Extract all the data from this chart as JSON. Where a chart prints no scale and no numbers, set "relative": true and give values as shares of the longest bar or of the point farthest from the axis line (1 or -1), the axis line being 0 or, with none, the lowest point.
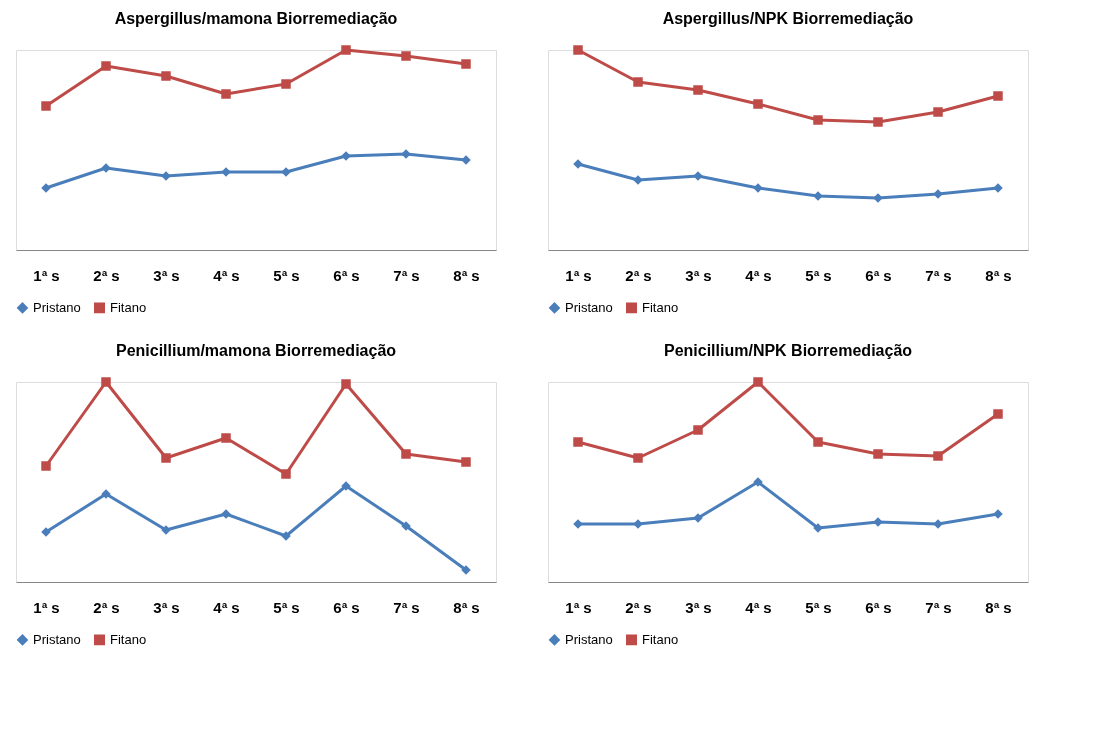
{
  "chart_data": [
    {
      "type": "line",
      "title": "Aspergillus/mamona Biorremediação",
      "relative": true,
      "grid": false,
      "legend": "bottom",
      "categories": [
        "1ª s",
        "2ª s",
        "3ª s",
        "4ª s",
        "5ª s",
        "6ª s",
        "7ª s",
        "8ª s"
      ],
      "series": [
        {
          "name": "Pristano",
          "color": "#4a7ebb",
          "marker": "diamond",
          "values": [
            0.31,
            0.41,
            0.37,
            0.39,
            0.39,
            0.47,
            0.48,
            0.45
          ]
        },
        {
          "name": "Fitano",
          "color": "#be4b48",
          "marker": "square",
          "values": [
            0.72,
            0.92,
            0.87,
            0.78,
            0.83,
            1.0,
            0.97,
            0.93
          ]
        }
      ]
    },
    {
      "type": "line",
      "title": "Aspergillus/NPK Biorremediação",
      "relative": true,
      "grid": false,
      "legend": "bottom",
      "categories": [
        "1ª s",
        "2ª s",
        "3ª s",
        "4ª s",
        "5ª s",
        "6ª s",
        "7ª s",
        "8ª s"
      ],
      "series": [
        {
          "name": "Pristano",
          "color": "#4a7ebb",
          "marker": "diamond",
          "values": [
            0.43,
            0.35,
            0.37,
            0.31,
            0.27,
            0.26,
            0.28,
            0.31
          ]
        },
        {
          "name": "Fitano",
          "color": "#be4b48",
          "marker": "square",
          "values": [
            1.0,
            0.84,
            0.8,
            0.73,
            0.65,
            0.64,
            0.69,
            0.77
          ]
        }
      ]
    },
    {
      "type": "line",
      "title": "Penicillium/mamona Biorremediação",
      "relative": true,
      "grid": false,
      "legend": "bottom",
      "categories": [
        "1ª s",
        "2ª s",
        "3ª s",
        "4ª s",
        "5ª s",
        "6ª s",
        "7ª s",
        "8ª s"
      ],
      "series": [
        {
          "name": "Pristano",
          "color": "#4a7ebb",
          "marker": "diamond",
          "values": [
            0.25,
            0.44,
            0.26,
            0.34,
            0.23,
            0.48,
            0.28,
            0.06
          ]
        },
        {
          "name": "Fitano",
          "color": "#be4b48",
          "marker": "square",
          "values": [
            0.58,
            1.0,
            0.62,
            0.72,
            0.54,
            0.99,
            0.64,
            0.6
          ]
        }
      ]
    },
    {
      "type": "line",
      "title": "Penicillium/NPK Biorremediação",
      "relative": true,
      "grid": false,
      "legend": "bottom",
      "categories": [
        "1ª s",
        "2ª s",
        "3ª s",
        "4ª s",
        "5ª s",
        "6ª s",
        "7ª s",
        "8ª s"
      ],
      "series": [
        {
          "name": "Pristano",
          "color": "#4a7ebb",
          "marker": "diamond",
          "values": [
            0.29,
            0.29,
            0.32,
            0.5,
            0.27,
            0.3,
            0.29,
            0.34
          ]
        },
        {
          "name": "Fitano",
          "color": "#be4b48",
          "marker": "square",
          "values": [
            0.7,
            0.62,
            0.76,
            1.0,
            0.7,
            0.64,
            0.63,
            0.84
          ]
        }
      ]
    }
  ]
}
